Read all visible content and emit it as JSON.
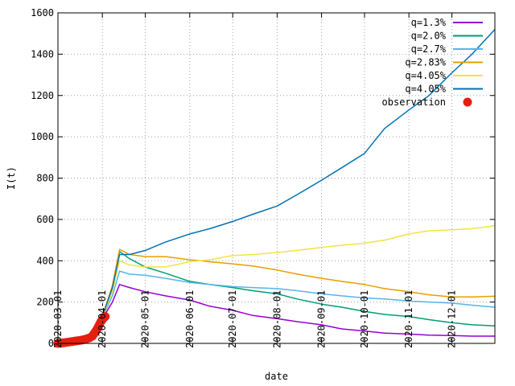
{
  "chart_data": {
    "type": "line",
    "title": "",
    "xlabel": "date",
    "ylabel": "I(t)",
    "xlim": [
      "2020-03-01",
      "2020-12-31"
    ],
    "ylim": [
      0,
      1600
    ],
    "grid": true,
    "legend_position": "top-right",
    "y_ticks": [
      "0",
      "200",
      "400",
      "600",
      "800",
      "1000",
      "1200",
      "1400",
      "1600"
    ],
    "x_ticks": [
      "2020-03-01",
      "2020-04-01",
      "2020-05-01",
      "2020-06-01",
      "2020-07-01",
      "2020-08-01",
      "2020-09-01",
      "2020-10-01",
      "2020-11-01",
      "2020-12-01"
    ],
    "series": [
      {
        "name": "q=1.3%",
        "color": "#9400d3",
        "points": [
          [
            "2020-03-01",
            0
          ],
          [
            "2020-03-15",
            10
          ],
          [
            "2020-03-25",
            45
          ],
          [
            "2020-04-01",
            120
          ],
          [
            "2020-04-08",
            200
          ],
          [
            "2020-04-13",
            285
          ],
          [
            "2020-04-20",
            270
          ],
          [
            "2020-05-01",
            250
          ],
          [
            "2020-05-15",
            230
          ],
          [
            "2020-06-01",
            210
          ],
          [
            "2020-06-15",
            180
          ],
          [
            "2020-07-01",
            160
          ],
          [
            "2020-07-15",
            135
          ],
          [
            "2020-08-01",
            120
          ],
          [
            "2020-08-15",
            105
          ],
          [
            "2020-09-01",
            90
          ],
          [
            "2020-09-15",
            70
          ],
          [
            "2020-10-01",
            60
          ],
          [
            "2020-10-15",
            50
          ],
          [
            "2020-11-01",
            45
          ],
          [
            "2020-11-15",
            40
          ],
          [
            "2020-12-01",
            38
          ],
          [
            "2020-12-15",
            35
          ],
          [
            "2020-12-31",
            35
          ]
        ]
      },
      {
        "name": "q=2.0%",
        "color": "#009e73",
        "points": [
          [
            "2020-03-01",
            0
          ],
          [
            "2020-03-15",
            10
          ],
          [
            "2020-03-25",
            45
          ],
          [
            "2020-04-01",
            130
          ],
          [
            "2020-04-08",
            270
          ],
          [
            "2020-04-13",
            445
          ],
          [
            "2020-04-20",
            410
          ],
          [
            "2020-05-01",
            370
          ],
          [
            "2020-05-15",
            340
          ],
          [
            "2020-06-01",
            300
          ],
          [
            "2020-06-15",
            285
          ],
          [
            "2020-07-01",
            270
          ],
          [
            "2020-07-15",
            255
          ],
          [
            "2020-08-01",
            240
          ],
          [
            "2020-08-15",
            215
          ],
          [
            "2020-09-01",
            190
          ],
          [
            "2020-09-15",
            175
          ],
          [
            "2020-10-01",
            155
          ],
          [
            "2020-10-15",
            140
          ],
          [
            "2020-11-01",
            130
          ],
          [
            "2020-11-15",
            115
          ],
          [
            "2020-12-01",
            100
          ],
          [
            "2020-12-15",
            90
          ],
          [
            "2020-12-31",
            85
          ]
        ]
      },
      {
        "name": "q=2.7%",
        "color": "#56b4e9",
        "points": [
          [
            "2020-03-01",
            0
          ],
          [
            "2020-03-15",
            10
          ],
          [
            "2020-03-25",
            45
          ],
          [
            "2020-04-01",
            125
          ],
          [
            "2020-04-08",
            230
          ],
          [
            "2020-04-13",
            350
          ],
          [
            "2020-04-20",
            335
          ],
          [
            "2020-05-01",
            330
          ],
          [
            "2020-05-15",
            315
          ],
          [
            "2020-06-01",
            295
          ],
          [
            "2020-06-15",
            285
          ],
          [
            "2020-07-01",
            275
          ],
          [
            "2020-07-15",
            270
          ],
          [
            "2020-08-01",
            265
          ],
          [
            "2020-08-15",
            255
          ],
          [
            "2020-09-01",
            240
          ],
          [
            "2020-09-15",
            230
          ],
          [
            "2020-10-01",
            220
          ],
          [
            "2020-10-15",
            215
          ],
          [
            "2020-11-01",
            205
          ],
          [
            "2020-11-15",
            200
          ],
          [
            "2020-12-01",
            195
          ],
          [
            "2020-12-15",
            185
          ],
          [
            "2020-12-31",
            175
          ]
        ]
      },
      {
        "name": "q=2.83%",
        "color": "#e69f00",
        "points": [
          [
            "2020-03-01",
            0
          ],
          [
            "2020-03-15",
            10
          ],
          [
            "2020-03-25",
            45
          ],
          [
            "2020-04-01",
            130
          ],
          [
            "2020-04-08",
            280
          ],
          [
            "2020-04-13",
            455
          ],
          [
            "2020-04-20",
            430
          ],
          [
            "2020-05-01",
            420
          ],
          [
            "2020-05-15",
            420
          ],
          [
            "2020-06-01",
            405
          ],
          [
            "2020-06-15",
            395
          ],
          [
            "2020-07-01",
            385
          ],
          [
            "2020-07-15",
            375
          ],
          [
            "2020-08-01",
            355
          ],
          [
            "2020-08-15",
            335
          ],
          [
            "2020-09-01",
            315
          ],
          [
            "2020-09-15",
            300
          ],
          [
            "2020-10-01",
            285
          ],
          [
            "2020-10-15",
            265
          ],
          [
            "2020-11-01",
            250
          ],
          [
            "2020-11-15",
            235
          ],
          [
            "2020-12-01",
            225
          ],
          [
            "2020-12-15",
            225
          ],
          [
            "2020-12-31",
            228
          ]
        ]
      },
      {
        "name": "q=4.05%",
        "color": "#f0e442",
        "points": [
          [
            "2020-03-01",
            0
          ],
          [
            "2020-03-15",
            10
          ],
          [
            "2020-03-25",
            45
          ],
          [
            "2020-04-01",
            125
          ],
          [
            "2020-04-08",
            250
          ],
          [
            "2020-04-13",
            400
          ],
          [
            "2020-04-20",
            380
          ],
          [
            "2020-05-01",
            370
          ],
          [
            "2020-05-15",
            370
          ],
          [
            "2020-06-01",
            395
          ],
          [
            "2020-06-15",
            405
          ],
          [
            "2020-07-01",
            425
          ],
          [
            "2020-07-15",
            430
          ],
          [
            "2020-08-01",
            440
          ],
          [
            "2020-08-15",
            450
          ],
          [
            "2020-09-01",
            465
          ],
          [
            "2020-09-15",
            475
          ],
          [
            "2020-10-01",
            485
          ],
          [
            "2020-10-15",
            500
          ],
          [
            "2020-11-01",
            530
          ],
          [
            "2020-11-15",
            545
          ],
          [
            "2020-12-01",
            550
          ],
          [
            "2020-12-15",
            555
          ],
          [
            "2020-12-31",
            570
          ]
        ]
      },
      {
        "name": "q=4.05%",
        "color": "#0072b2",
        "points": [
          [
            "2020-03-01",
            0
          ],
          [
            "2020-03-15",
            10
          ],
          [
            "2020-03-25",
            45
          ],
          [
            "2020-04-01",
            130
          ],
          [
            "2020-04-08",
            270
          ],
          [
            "2020-04-13",
            430
          ],
          [
            "2020-04-20",
            430
          ],
          [
            "2020-05-01",
            450
          ],
          [
            "2020-05-15",
            490
          ],
          [
            "2020-06-01",
            530
          ],
          [
            "2020-06-15",
            555
          ],
          [
            "2020-07-01",
            590
          ],
          [
            "2020-07-15",
            625
          ],
          [
            "2020-08-01",
            665
          ],
          [
            "2020-08-15",
            720
          ],
          [
            "2020-09-01",
            790
          ],
          [
            "2020-09-15",
            850
          ],
          [
            "2020-10-01",
            920
          ],
          [
            "2020-10-15",
            1040
          ],
          [
            "2020-11-01",
            1130
          ],
          [
            "2020-11-15",
            1200
          ],
          [
            "2020-12-01",
            1310
          ],
          [
            "2020-12-15",
            1400
          ],
          [
            "2020-12-31",
            1520
          ]
        ]
      }
    ],
    "observation": {
      "name": "observation",
      "color": "#e51e10",
      "points": [
        [
          "2020-03-01",
          0
        ],
        [
          "2020-03-03",
          1
        ],
        [
          "2020-03-05",
          3
        ],
        [
          "2020-03-07",
          5
        ],
        [
          "2020-03-09",
          7
        ],
        [
          "2020-03-11",
          9
        ],
        [
          "2020-03-13",
          11
        ],
        [
          "2020-03-15",
          13
        ],
        [
          "2020-03-17",
          15
        ],
        [
          "2020-03-19",
          18
        ],
        [
          "2020-03-21",
          22
        ],
        [
          "2020-03-23",
          27
        ],
        [
          "2020-03-25",
          35
        ],
        [
          "2020-03-26",
          45
        ],
        [
          "2020-03-27",
          55
        ],
        [
          "2020-03-28",
          65
        ],
        [
          "2020-03-29",
          78
        ],
        [
          "2020-03-30",
          92
        ],
        [
          "2020-03-31",
          105
        ],
        [
          "2020-04-01",
          115
        ],
        [
          "2020-04-02",
          125
        ],
        [
          "2020-04-03",
          130
        ]
      ]
    }
  }
}
